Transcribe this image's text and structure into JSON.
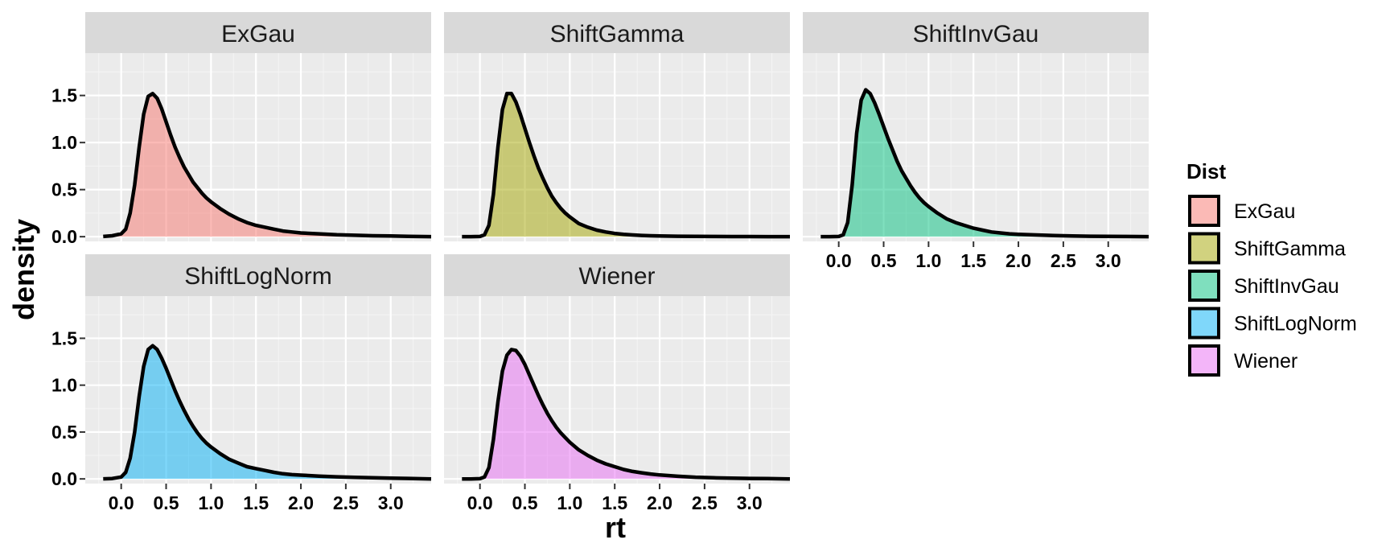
{
  "chart_data": {
    "type": "area",
    "chart_kind": "faceted density plot",
    "xlabel": "rt",
    "ylabel": "density",
    "xlim": [
      -0.4,
      3.45
    ],
    "ylim": [
      -0.05,
      1.95
    ],
    "x_ticks": [
      "0.0",
      "0.5",
      "1.0",
      "1.5",
      "2.0",
      "2.5",
      "3.0"
    ],
    "y_ticks": [
      "0.0",
      "0.5",
      "1.0",
      "1.5"
    ],
    "grid": true,
    "legend": {
      "title": "Dist",
      "placement": "right",
      "entries": [
        {
          "label": "ExGau",
          "color": "#F8766D"
        },
        {
          "label": "ShiftGamma",
          "color": "#A3A500"
        },
        {
          "label": "ShiftInvGau",
          "color": "#00BF7D"
        },
        {
          "label": "ShiftLogNorm",
          "color": "#00B0F6"
        },
        {
          "label": "Wiener",
          "color": "#E76BF3"
        }
      ]
    },
    "x": [
      -0.5,
      -0.4,
      -0.3,
      -0.2,
      -0.1,
      0.0,
      0.05,
      0.1,
      0.15,
      0.2,
      0.25,
      0.3,
      0.35,
      0.4,
      0.45,
      0.5,
      0.55,
      0.6,
      0.65,
      0.7,
      0.75,
      0.8,
      0.85,
      0.9,
      0.95,
      1.0,
      1.1,
      1.2,
      1.3,
      1.4,
      1.5,
      1.6,
      1.7,
      1.8,
      1.9,
      2.0,
      2.2,
      2.4,
      2.6,
      2.8,
      3.0,
      3.2,
      3.45
    ],
    "series": [
      {
        "name": "ExGau",
        "color": "#F8766D",
        "values": [
          0,
          0,
          0,
          0.002,
          0.01,
          0.03,
          0.08,
          0.25,
          0.55,
          0.95,
          1.3,
          1.49,
          1.52,
          1.47,
          1.36,
          1.22,
          1.08,
          0.95,
          0.84,
          0.74,
          0.66,
          0.58,
          0.52,
          0.46,
          0.41,
          0.37,
          0.3,
          0.24,
          0.19,
          0.15,
          0.12,
          0.1,
          0.08,
          0.06,
          0.05,
          0.04,
          0.03,
          0.02,
          0.015,
          0.01,
          0.007,
          0.004,
          0
        ]
      },
      {
        "name": "ShiftGamma",
        "color": "#A3A500",
        "values": [
          0,
          0,
          0,
          0,
          0,
          0.002,
          0.02,
          0.12,
          0.45,
          0.95,
          1.35,
          1.52,
          1.52,
          1.43,
          1.3,
          1.15,
          1.0,
          0.86,
          0.73,
          0.62,
          0.52,
          0.43,
          0.36,
          0.3,
          0.25,
          0.21,
          0.14,
          0.1,
          0.07,
          0.05,
          0.035,
          0.025,
          0.018,
          0.013,
          0.01,
          0.008,
          0.005,
          0.003,
          0.002,
          0.001,
          0.001,
          0,
          0
        ]
      },
      {
        "name": "ShiftInvGau",
        "color": "#00BF7D",
        "values": [
          0,
          0,
          0,
          0,
          0,
          0.002,
          0.02,
          0.15,
          0.55,
          1.1,
          1.45,
          1.56,
          1.52,
          1.42,
          1.3,
          1.17,
          1.04,
          0.92,
          0.8,
          0.7,
          0.62,
          0.54,
          0.47,
          0.41,
          0.36,
          0.32,
          0.25,
          0.19,
          0.15,
          0.12,
          0.09,
          0.07,
          0.05,
          0.04,
          0.03,
          0.025,
          0.018,
          0.012,
          0.008,
          0.005,
          0.003,
          0.002,
          0
        ]
      },
      {
        "name": "ShiftLogNorm",
        "color": "#00B0F6",
        "values": [
          0,
          0,
          0,
          0.001,
          0.004,
          0.02,
          0.07,
          0.22,
          0.5,
          0.88,
          1.2,
          1.38,
          1.42,
          1.38,
          1.29,
          1.18,
          1.06,
          0.94,
          0.83,
          0.73,
          0.64,
          0.56,
          0.49,
          0.43,
          0.38,
          0.34,
          0.27,
          0.21,
          0.17,
          0.13,
          0.11,
          0.09,
          0.07,
          0.055,
          0.045,
          0.04,
          0.03,
          0.022,
          0.016,
          0.012,
          0.008,
          0.005,
          0
        ]
      },
      {
        "name": "Wiener",
        "color": "#E76BF3",
        "values": [
          0,
          0,
          0,
          0,
          0,
          0.002,
          0.02,
          0.12,
          0.42,
          0.82,
          1.15,
          1.32,
          1.38,
          1.37,
          1.31,
          1.22,
          1.11,
          1.0,
          0.89,
          0.79,
          0.7,
          0.62,
          0.55,
          0.49,
          0.44,
          0.39,
          0.31,
          0.25,
          0.2,
          0.16,
          0.13,
          0.1,
          0.08,
          0.065,
          0.052,
          0.042,
          0.028,
          0.018,
          0.012,
          0.008,
          0.005,
          0.003,
          0
        ]
      }
    ]
  }
}
